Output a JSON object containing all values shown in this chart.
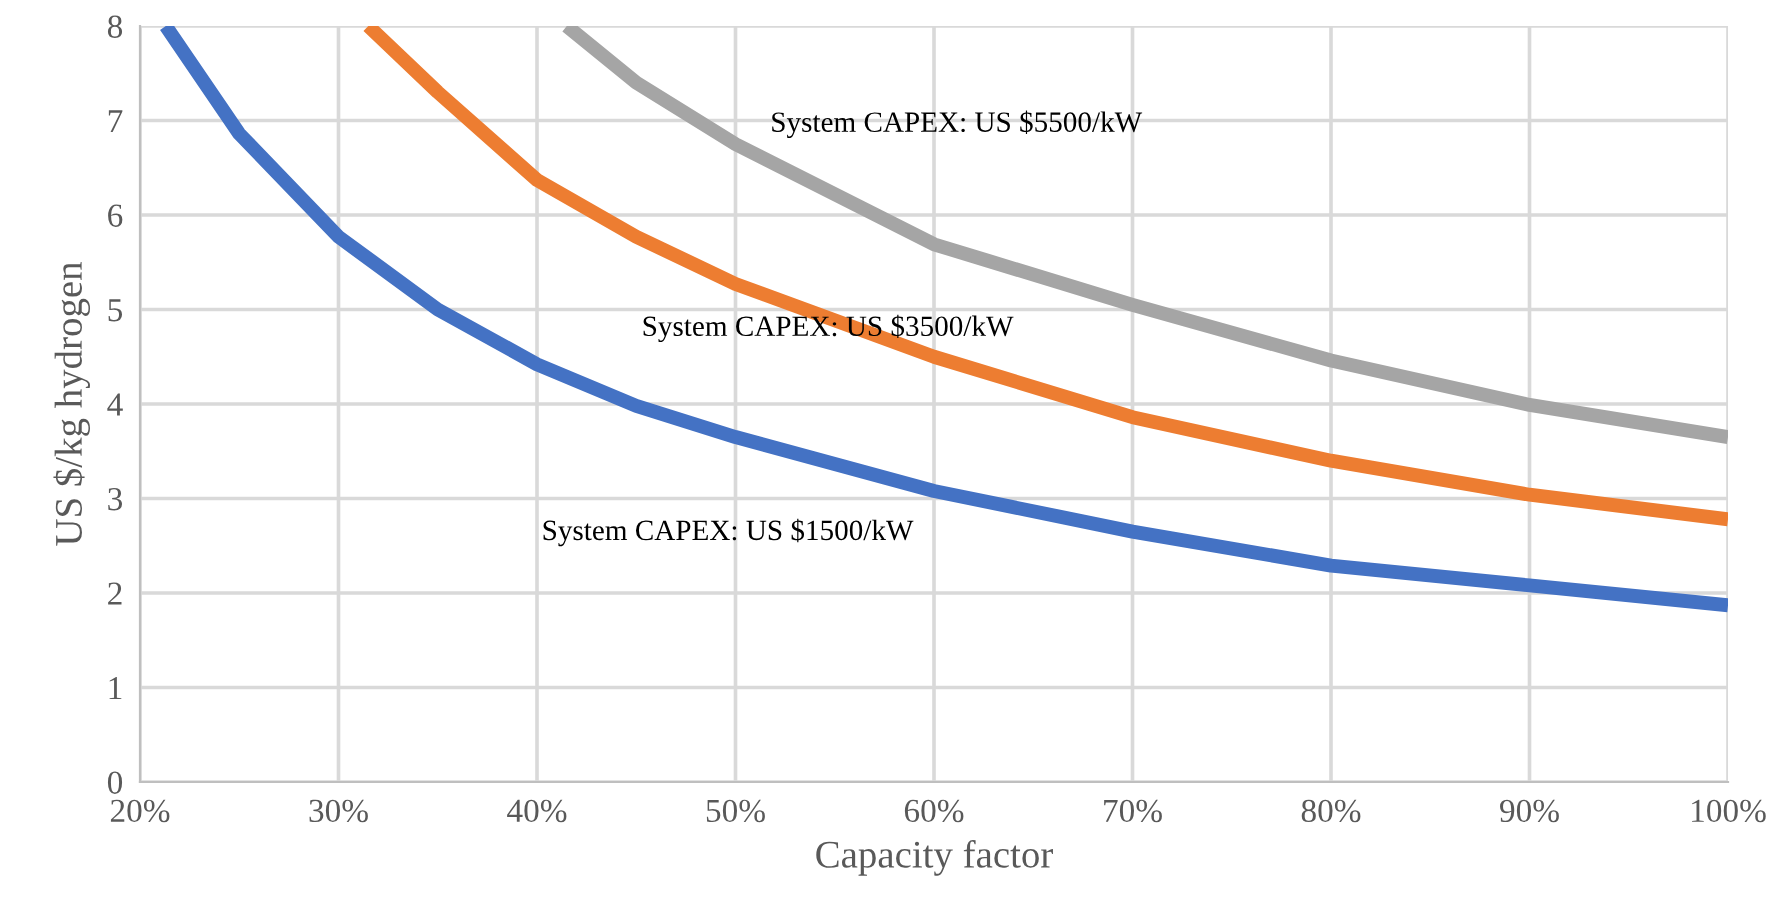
{
  "chart_data": {
    "type": "line",
    "xlabel": "Capacity factor",
    "ylabel": "US $/kg hydrogen",
    "xlim": [
      20,
      100
    ],
    "ylim": [
      0,
      8
    ],
    "xticks": [
      {
        "value": 20,
        "label": "20%"
      },
      {
        "value": 30,
        "label": "30%"
      },
      {
        "value": 40,
        "label": "40%"
      },
      {
        "value": 50,
        "label": "50%"
      },
      {
        "value": 60,
        "label": "60%"
      },
      {
        "value": 70,
        "label": "70%"
      },
      {
        "value": 80,
        "label": "80%"
      },
      {
        "value": 90,
        "label": "90%"
      },
      {
        "value": 100,
        "label": "100%"
      }
    ],
    "yticks": [
      0,
      1,
      2,
      3,
      4,
      5,
      6,
      7,
      8
    ],
    "grid": true,
    "legend": false,
    "marker": "none",
    "line_style": "solid",
    "series": [
      {
        "name": "System CAPEX: US $1500/kW",
        "color": "#4472c4",
        "x": [
          21.3,
          25,
          30,
          35,
          40,
          45,
          50,
          60,
          70,
          80,
          90,
          100
        ],
        "values": [
          8.0,
          6.86,
          5.77,
          5.0,
          4.42,
          3.98,
          3.65,
          3.08,
          2.65,
          2.29,
          2.08,
          1.87
        ]
      },
      {
        "name": "System CAPEX: US $3500/kW",
        "color": "#ed7d31",
        "x": [
          31.5,
          35,
          40,
          45,
          50,
          60,
          70,
          80,
          90,
          100
        ],
        "values": [
          8.0,
          7.3,
          6.37,
          5.77,
          5.27,
          4.5,
          3.86,
          3.4,
          3.04,
          2.78
        ]
      },
      {
        "name": "System CAPEX: US $5500/kW",
        "color": "#a5a5a5",
        "x": [
          41.5,
          45,
          50,
          60,
          70,
          80,
          90,
          100
        ],
        "values": [
          8.0,
          7.4,
          6.75,
          5.69,
          5.05,
          4.46,
          3.99,
          3.65
        ]
      }
    ]
  }
}
